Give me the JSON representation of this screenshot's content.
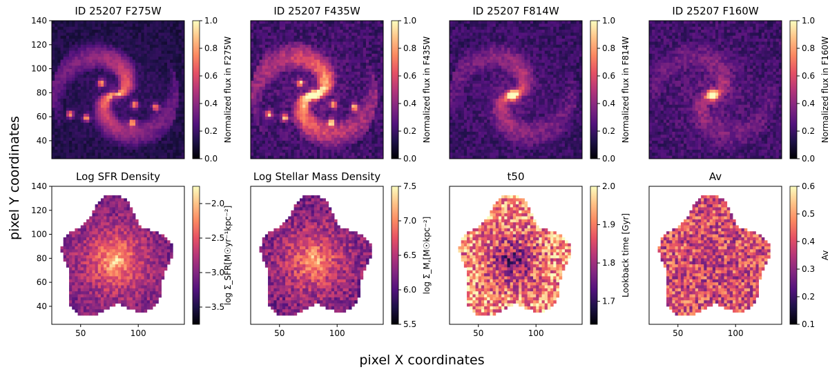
{
  "figure": {
    "xlabel": "pixel X coordinates",
    "ylabel": "pixel Y coordinates"
  },
  "colormaps": {
    "magma": [
      "#000004",
      "#1d1147",
      "#51127c",
      "#822681",
      "#b63679",
      "#e65164",
      "#fb8861",
      "#fec287",
      "#fcfdbf"
    ]
  },
  "chart_data": [
    {
      "type": "heatmap",
      "title": "ID 25207 F275W",
      "colorbar_label": "Normalized flux in F275W",
      "clim": [
        0,
        1
      ],
      "cbar_ticks": [
        "0.0",
        "0.2",
        "0.4",
        "0.6",
        "0.8",
        "1.0"
      ],
      "cbar_values": [
        0,
        0.2,
        0.4,
        0.6,
        0.8,
        1.0
      ],
      "xlim": [
        25,
        140
      ],
      "ylim": [
        25,
        140
      ],
      "yticks": [
        40,
        60,
        80,
        100,
        120,
        140
      ],
      "xticks": [],
      "image_kind": "flux",
      "galaxy": {
        "background": 0.12,
        "bulge": 0.25,
        "arms": 0.45,
        "clumps": true
      }
    },
    {
      "type": "heatmap",
      "title": "ID 25207 F435W",
      "colorbar_label": "Normalized flux in F435W",
      "clim": [
        0,
        1
      ],
      "cbar_ticks": [
        "0.0",
        "0.2",
        "0.4",
        "0.6",
        "0.8",
        "1.0"
      ],
      "cbar_values": [
        0,
        0.2,
        0.4,
        0.6,
        0.8,
        1.0
      ],
      "xlim": [
        25,
        140
      ],
      "ylim": [
        25,
        140
      ],
      "yticks": [],
      "xticks": [],
      "image_kind": "flux",
      "galaxy": {
        "background": 0.2,
        "bulge": 1.0,
        "arms": 0.55,
        "clumps": true
      }
    },
    {
      "type": "heatmap",
      "title": "ID 25207 F814W",
      "colorbar_label": "Normalized flux in F814W",
      "clim": [
        0,
        1
      ],
      "cbar_ticks": [
        "0.0",
        "0.2",
        "0.4",
        "0.6",
        "0.8",
        "1.0"
      ],
      "cbar_values": [
        0,
        0.2,
        0.4,
        0.6,
        0.8,
        1.0
      ],
      "xlim": [
        25,
        140
      ],
      "ylim": [
        25,
        140
      ],
      "yticks": [],
      "xticks": [],
      "image_kind": "flux",
      "galaxy": {
        "background": 0.18,
        "bulge": 1.0,
        "arms": 0.28,
        "clumps": false
      }
    },
    {
      "type": "heatmap",
      "title": "ID 25207 F160W",
      "colorbar_label": "Normalized flux in F160W",
      "clim": [
        0,
        1
      ],
      "cbar_ticks": [
        "0.0",
        "0.2",
        "0.4",
        "0.6",
        "0.8",
        "1.0"
      ],
      "cbar_values": [
        0,
        0.2,
        0.4,
        0.6,
        0.8,
        1.0
      ],
      "xlim": [
        25,
        140
      ],
      "ylim": [
        25,
        140
      ],
      "yticks": [],
      "xticks": [],
      "image_kind": "flux",
      "galaxy": {
        "background": 0.2,
        "bulge": 1.0,
        "arms": 0.18,
        "clumps": false
      }
    },
    {
      "type": "heatmap",
      "title": "Log SFR Density",
      "colorbar_label": "log Σ_SFR[M☉yr⁻¹kpc⁻²]",
      "clim": [
        -3.75,
        -1.75
      ],
      "cbar_ticks": [
        "−2.0",
        "−2.5",
        "−3.0",
        "−3.5"
      ],
      "cbar_values": [
        -2.0,
        -2.5,
        -3.0,
        -3.5
      ],
      "xlim": [
        25,
        140
      ],
      "ylim": [
        25,
        140
      ],
      "yticks": [
        40,
        60,
        80,
        100,
        120,
        140
      ],
      "xticks": [
        50,
        100
      ],
      "image_kind": "map",
      "galaxy": {
        "center": 0.95,
        "edge": 0.3,
        "noise": 0.25
      }
    },
    {
      "type": "heatmap",
      "title": "Log Stellar Mass Density",
      "colorbar_label": "log Σ_M,[M☉kpc⁻²]",
      "clim": [
        5.5,
        7.5
      ],
      "cbar_ticks": [
        "5.5",
        "6.0",
        "6.5",
        "7.0",
        "7.5"
      ],
      "cbar_values": [
        5.5,
        6.0,
        6.5,
        7.0,
        7.5
      ],
      "xlim": [
        25,
        140
      ],
      "ylim": [
        25,
        140
      ],
      "yticks": [],
      "xticks": [
        50,
        100
      ],
      "image_kind": "map",
      "galaxy": {
        "center": 0.9,
        "edge": 0.3,
        "noise": 0.3
      }
    },
    {
      "type": "heatmap",
      "title": "t50",
      "colorbar_label": "Lookback time [Gyr]",
      "clim": [
        1.64,
        2.0
      ],
      "cbar_ticks": [
        "1.7",
        "1.8",
        "1.9",
        "2.0"
      ],
      "cbar_values": [
        1.7,
        1.8,
        1.9,
        2.0
      ],
      "xlim": [
        25,
        140
      ],
      "ylim": [
        25,
        140
      ],
      "yticks": [],
      "xticks": [
        50,
        100
      ],
      "image_kind": "map",
      "galaxy": {
        "center": 0.25,
        "edge": 0.85,
        "noise": 0.55
      }
    },
    {
      "type": "heatmap",
      "title": "Av",
      "colorbar_label": "Av",
      "clim": [
        0.1,
        0.6
      ],
      "cbar_ticks": [
        "0.1",
        "0.2",
        "0.3",
        "0.4",
        "0.5",
        "0.6"
      ],
      "cbar_values": [
        0.1,
        0.2,
        0.3,
        0.4,
        0.5,
        0.6
      ],
      "xlim": [
        25,
        140
      ],
      "ylim": [
        25,
        140
      ],
      "yticks": [],
      "xticks": [
        50,
        100
      ],
      "image_kind": "map",
      "galaxy": {
        "center": 0.55,
        "edge": 0.6,
        "noise": 0.5
      }
    }
  ]
}
